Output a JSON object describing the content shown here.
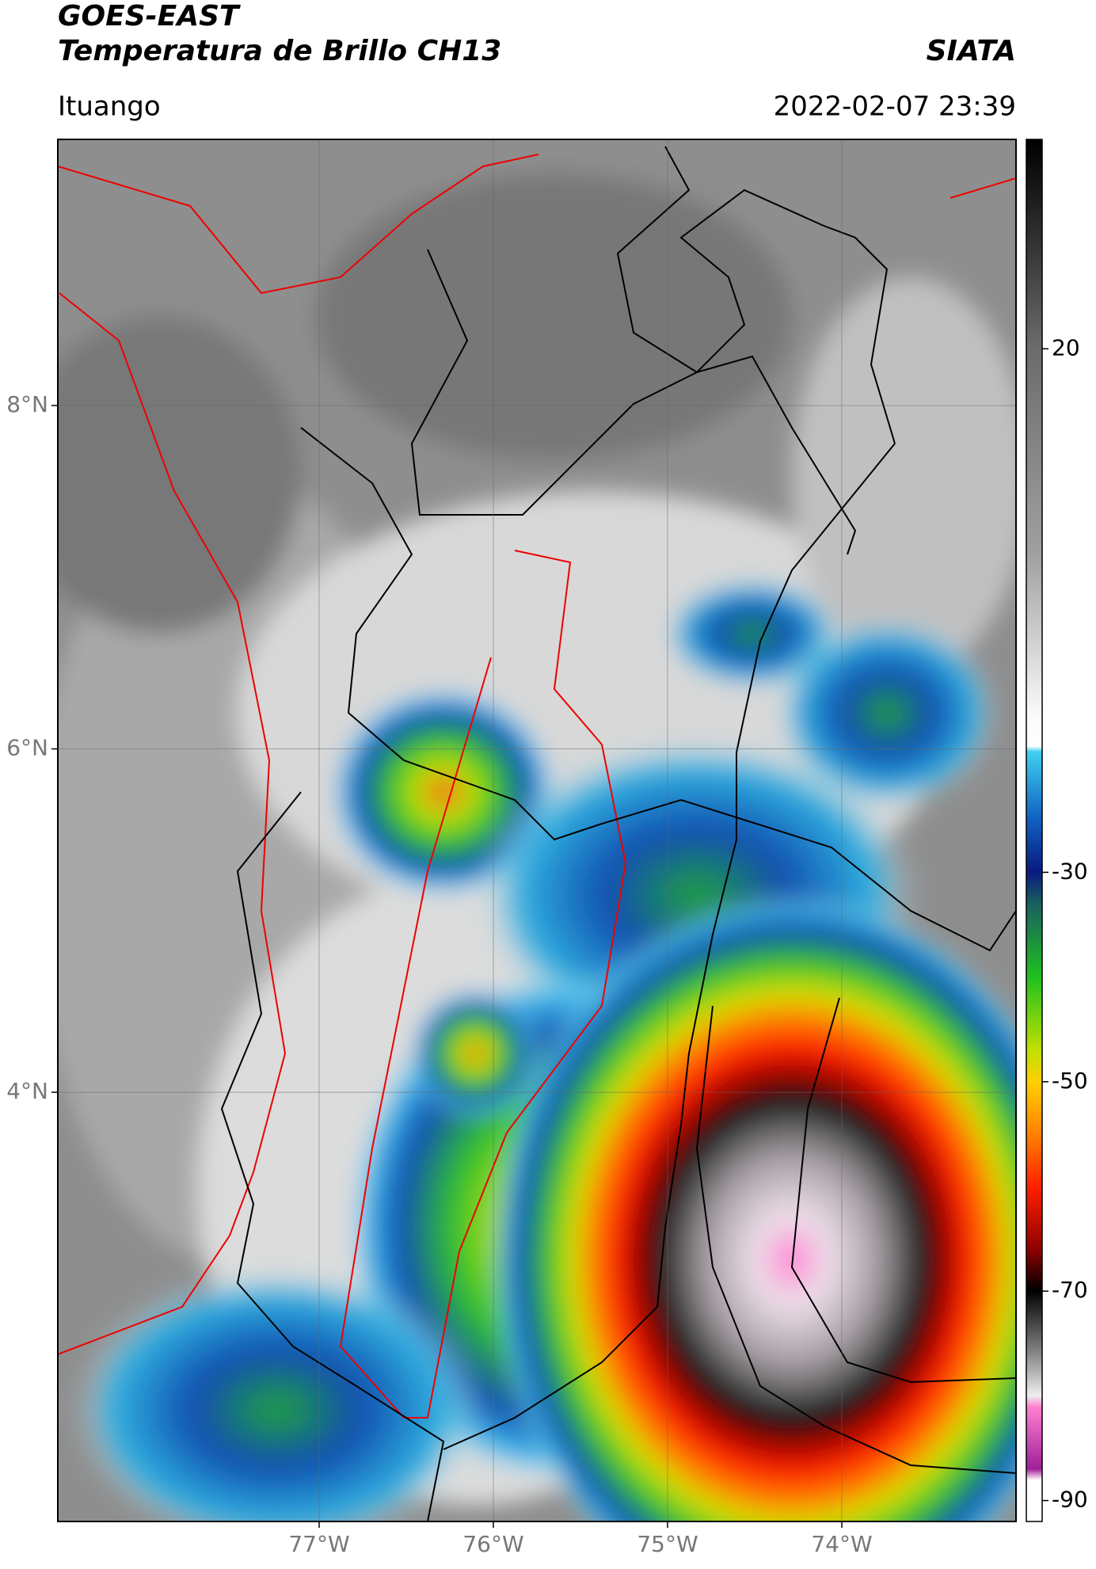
{
  "header": {
    "title": "GOES-EAST",
    "subtitle": "Temperatura de Brillo CH13",
    "source": "SIATA",
    "location": "Ituango",
    "timestamp": "2022-02-07 23:39"
  },
  "map": {
    "lonlim": [
      -78.5,
      -73
    ],
    "latlim": [
      1.5,
      9.55
    ],
    "grid": true,
    "lon_ticks": [
      {
        "value": -77,
        "label": "77°W"
      },
      {
        "value": -76,
        "label": "76°W"
      },
      {
        "value": -75,
        "label": "75°W"
      },
      {
        "value": -74,
        "label": "74°W"
      }
    ],
    "lat_ticks": [
      {
        "value": 8,
        "label": "8°N"
      },
      {
        "value": 6,
        "label": "6°N"
      },
      {
        "value": 4,
        "label": "4°N"
      }
    ]
  },
  "colorbar": {
    "lim": [
      -92,
      40
    ],
    "ticks": [
      20,
      -30,
      -50,
      -70,
      -90
    ]
  }
}
